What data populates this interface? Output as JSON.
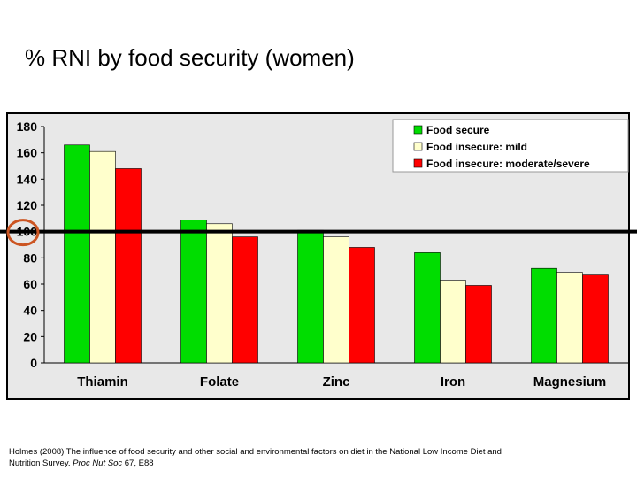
{
  "slide": {
    "title": "% RNI by food security (women)"
  },
  "citation": {
    "before": "Holmes (2008) The influence of food security and other social and environmental factors on diet in the National Low Income Diet and Nutrition Survey. ",
    "journal": "Proc Nut Soc",
    "after": " 67, E88"
  },
  "chart_data": {
    "type": "bar",
    "categories": [
      "Thiamin",
      "Folate",
      "Zinc",
      "Iron",
      "Magnesium"
    ],
    "series": [
      {
        "name": "Food secure",
        "color": "#00dd00",
        "values": [
          166,
          109,
          101,
          84,
          72
        ]
      },
      {
        "name": "Food insecure: mild",
        "color": "#ffffcc",
        "values": [
          161,
          106,
          96,
          63,
          69
        ]
      },
      {
        "name": "Food insecure: moderate/severe",
        "color": "#ff0000",
        "values": [
          148,
          96,
          88,
          59,
          67
        ]
      }
    ],
    "ylim": [
      0,
      180
    ],
    "yticks": [
      0,
      20,
      40,
      60,
      80,
      100,
      120,
      140,
      160,
      180
    ],
    "reference_line": 100,
    "highlighted_tick": 100,
    "grid": false,
    "legend_position": "top-right",
    "background": "#e8e8e8"
  }
}
